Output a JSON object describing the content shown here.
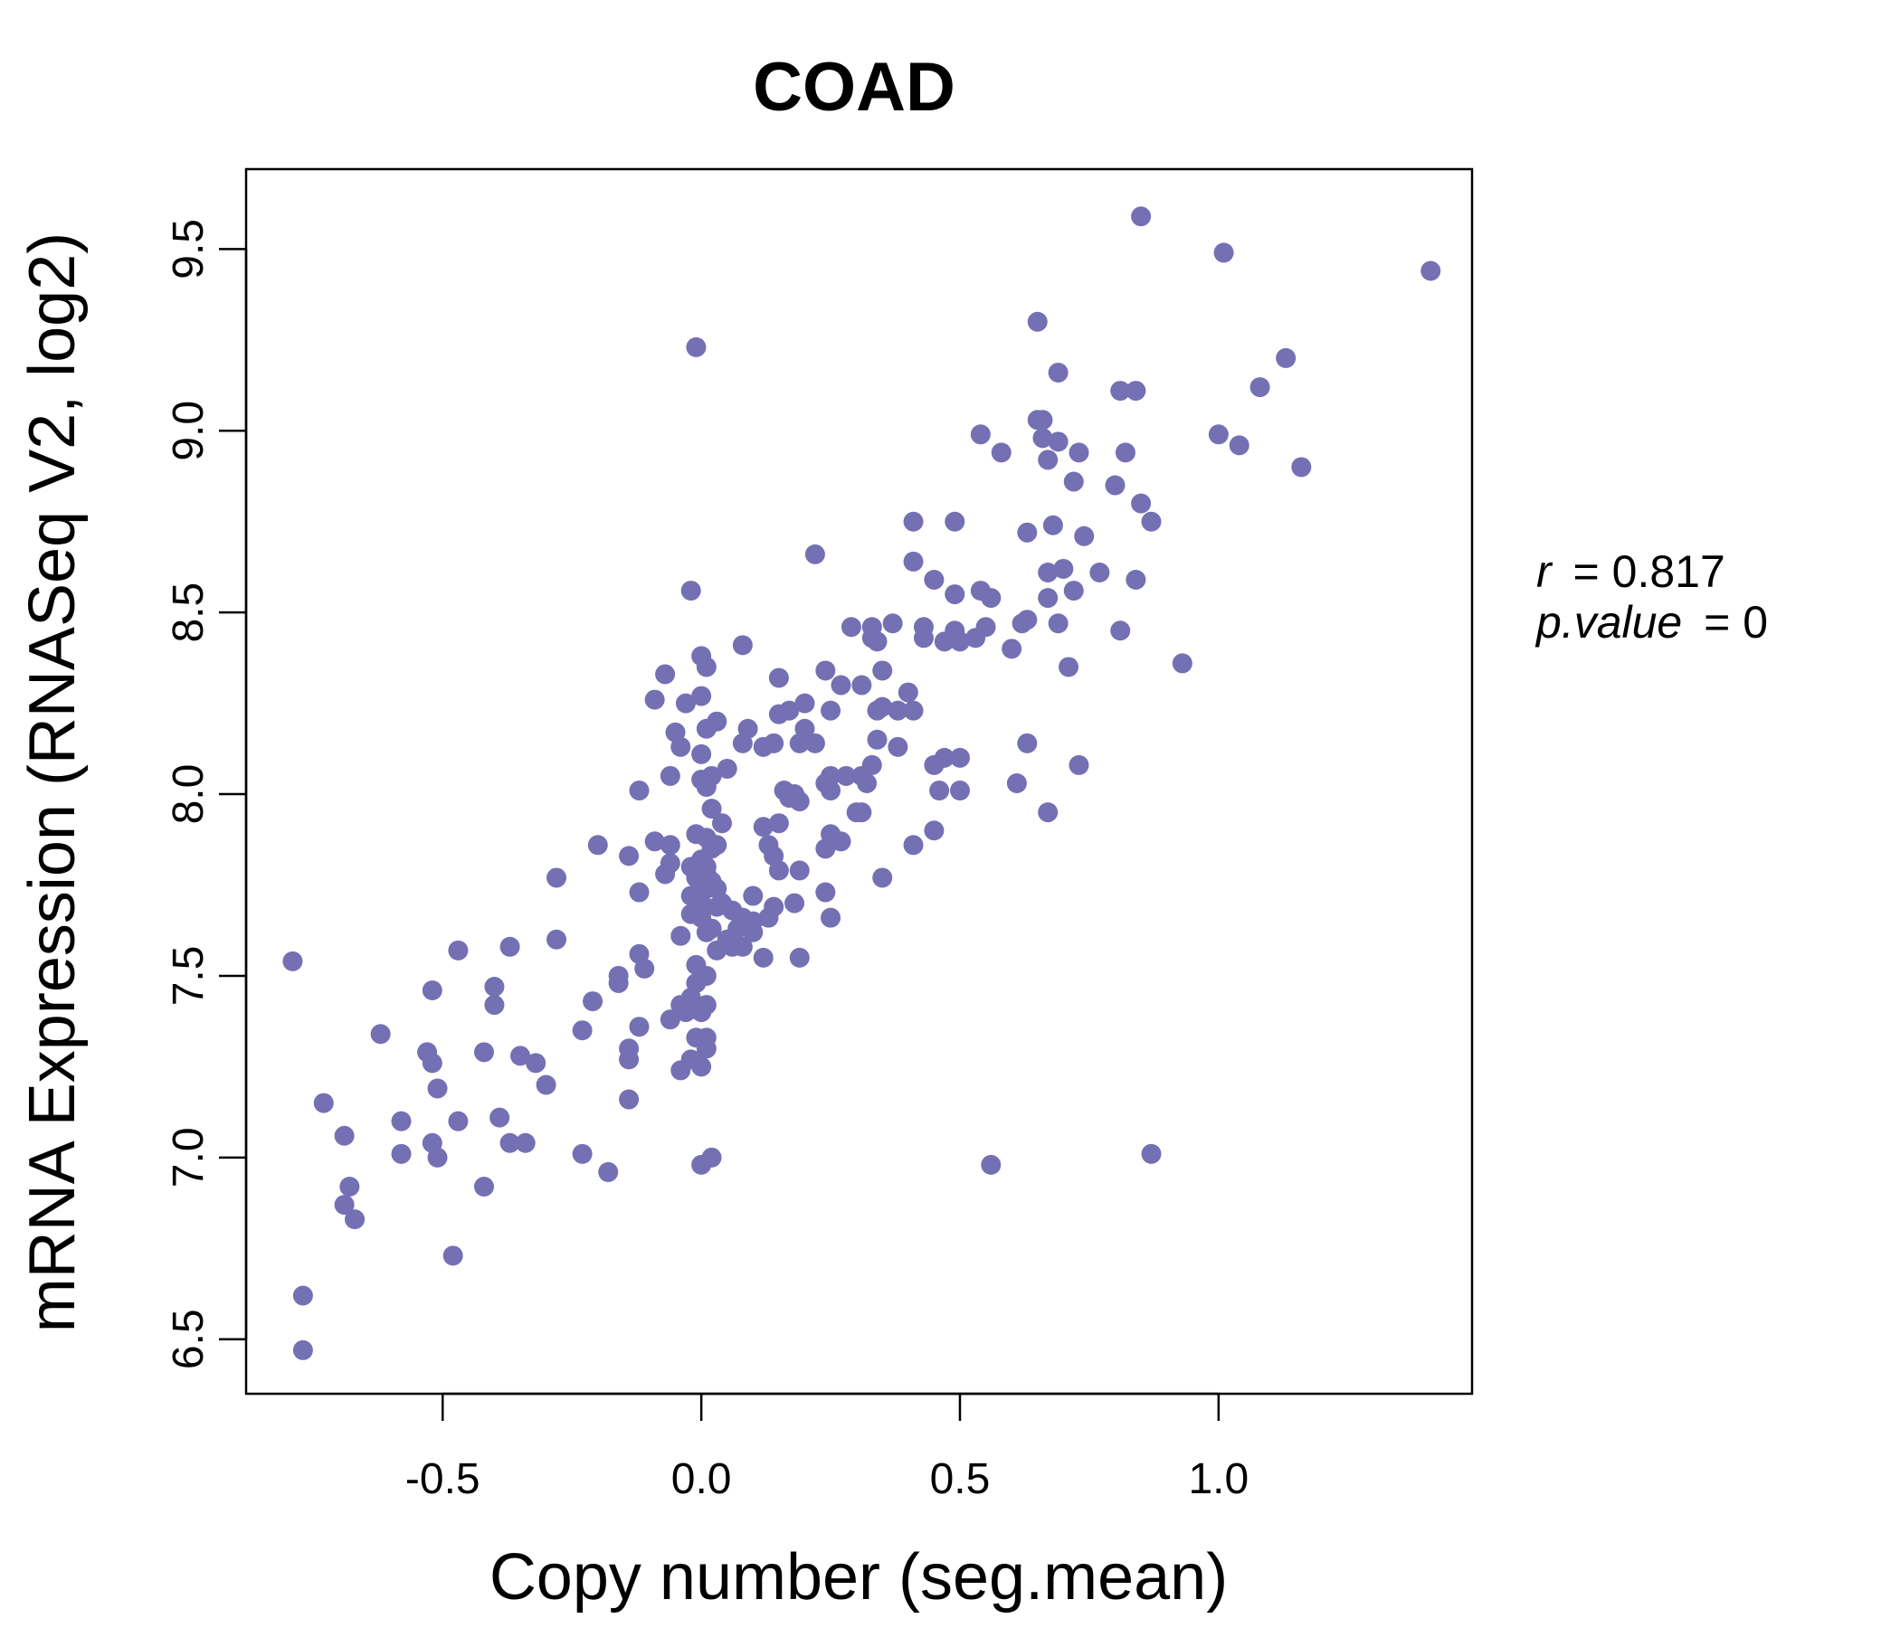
{
  "chart_data": {
    "type": "scatter",
    "title": "COAD",
    "xlabel": "Copy number (seg.mean)",
    "ylabel": "mRNA Expression (RNASeq V2, log2)",
    "xlim": [
      -0.88,
      1.49
    ],
    "ylim": [
      6.35,
      9.72
    ],
    "xticks": [
      -0.5,
      0.0,
      0.5,
      1.0
    ],
    "xtick_labels": [
      "-0.5",
      "0.0",
      "0.5",
      "1.0"
    ],
    "yticks": [
      6.5,
      7.0,
      7.5,
      8.0,
      8.5,
      9.0,
      9.5
    ],
    "ytick_labels": [
      "6.5",
      "7.0",
      "7.5",
      "8.0",
      "8.5",
      "9.0",
      "9.5"
    ],
    "grid": false,
    "colors": {
      "point": "#7570b3",
      "title": "#7570b3"
    },
    "stats": {
      "r_label": "r",
      "r_value": "0.817",
      "p_label": "p.value",
      "p_value": "0"
    },
    "points": [
      [
        0.85,
        9.59
      ],
      [
        1.01,
        9.49
      ],
      [
        1.41,
        9.44
      ],
      [
        0.65,
        9.3
      ],
      [
        -0.01,
        9.23
      ],
      [
        1.13,
        9.2
      ],
      [
        0.69,
        9.16
      ],
      [
        0.81,
        9.11
      ],
      [
        0.84,
        9.11
      ],
      [
        1.08,
        9.12
      ],
      [
        0.65,
        9.03
      ],
      [
        0.66,
        9.03
      ],
      [
        0.54,
        8.99
      ],
      [
        0.66,
        8.98
      ],
      [
        0.69,
        8.97
      ],
      [
        1.0,
        8.99
      ],
      [
        1.04,
        8.96
      ],
      [
        0.58,
        8.94
      ],
      [
        0.67,
        8.92
      ],
      [
        0.73,
        8.94
      ],
      [
        0.82,
        8.94
      ],
      [
        1.16,
        8.9
      ],
      [
        0.72,
        8.86
      ],
      [
        0.8,
        8.85
      ],
      [
        0.85,
        8.8
      ],
      [
        0.41,
        8.75
      ],
      [
        0.49,
        8.75
      ],
      [
        0.87,
        8.75
      ],
      [
        0.63,
        8.72
      ],
      [
        0.68,
        8.74
      ],
      [
        0.74,
        8.71
      ],
      [
        0.22,
        8.66
      ],
      [
        0.41,
        8.64
      ],
      [
        0.67,
        8.61
      ],
      [
        0.7,
        8.62
      ],
      [
        0.77,
        8.61
      ],
      [
        0.84,
        8.59
      ],
      [
        0.45,
        8.59
      ],
      [
        -0.02,
        8.56
      ],
      [
        0.49,
        8.55
      ],
      [
        0.54,
        8.56
      ],
      [
        0.56,
        8.54
      ],
      [
        0.67,
        8.54
      ],
      [
        0.72,
        8.56
      ],
      [
        0.37,
        8.47
      ],
      [
        0.29,
        8.46
      ],
      [
        0.33,
        8.46
      ],
      [
        0.43,
        8.46
      ],
      [
        0.49,
        8.45
      ],
      [
        0.55,
        8.46
      ],
      [
        0.62,
        8.47
      ],
      [
        0.63,
        8.48
      ],
      [
        0.69,
        8.47
      ],
      [
        0.33,
        8.43
      ],
      [
        0.34,
        8.42
      ],
      [
        0.43,
        8.43
      ],
      [
        0.47,
        8.42
      ],
      [
        0.5,
        8.42
      ],
      [
        0.53,
        8.43
      ],
      [
        0.81,
        8.45
      ],
      [
        0.6,
        8.4
      ],
      [
        0.08,
        8.41
      ],
      [
        0.0,
        8.38
      ],
      [
        0.01,
        8.35
      ],
      [
        -0.07,
        8.33
      ],
      [
        0.71,
        8.35
      ],
      [
        0.93,
        8.36
      ],
      [
        0.24,
        8.34
      ],
      [
        0.35,
        8.34
      ],
      [
        0.27,
        8.3
      ],
      [
        0.31,
        8.3
      ],
      [
        0.15,
        8.32
      ],
      [
        0.4,
        8.28
      ],
      [
        -0.09,
        8.26
      ],
      [
        -0.03,
        8.25
      ],
      [
        0.0,
        8.27
      ],
      [
        0.2,
        8.25
      ],
      [
        0.15,
        8.22
      ],
      [
        0.17,
        8.23
      ],
      [
        0.25,
        8.23
      ],
      [
        0.34,
        8.23
      ],
      [
        0.35,
        8.24
      ],
      [
        0.38,
        8.23
      ],
      [
        0.41,
        8.23
      ],
      [
        0.03,
        8.2
      ],
      [
        0.01,
        8.18
      ],
      [
        0.09,
        8.18
      ],
      [
        0.2,
        8.18
      ],
      [
        -0.05,
        8.17
      ],
      [
        -0.04,
        8.13
      ],
      [
        0.08,
        8.14
      ],
      [
        0.12,
        8.13
      ],
      [
        0.14,
        8.14
      ],
      [
        0.19,
        8.14
      ],
      [
        0.22,
        8.14
      ],
      [
        0.34,
        8.15
      ],
      [
        0.38,
        8.13
      ],
      [
        0.63,
        8.14
      ],
      [
        0.0,
        8.11
      ],
      [
        0.05,
        8.07
      ],
      [
        0.33,
        8.08
      ],
      [
        0.45,
        8.08
      ],
      [
        0.47,
        8.1
      ],
      [
        0.5,
        8.1
      ],
      [
        0.73,
        8.08
      ],
      [
        0.28,
        8.05
      ],
      [
        0.31,
        8.05
      ],
      [
        0.25,
        8.05
      ],
      [
        0.32,
        8.03
      ],
      [
        -0.06,
        8.05
      ],
      [
        0.0,
        8.04
      ],
      [
        0.01,
        8.02
      ],
      [
        0.02,
        8.05
      ],
      [
        0.16,
        8.01
      ],
      [
        0.17,
        7.99
      ],
      [
        0.18,
        8.0
      ],
      [
        0.19,
        7.98
      ],
      [
        0.24,
        8.03
      ],
      [
        0.25,
        8.01
      ],
      [
        -0.12,
        8.01
      ],
      [
        0.46,
        8.01
      ],
      [
        0.5,
        8.01
      ],
      [
        0.61,
        8.03
      ],
      [
        0.67,
        7.95
      ],
      [
        0.02,
        7.96
      ],
      [
        0.04,
        7.92
      ],
      [
        0.12,
        7.91
      ],
      [
        0.15,
        7.92
      ],
      [
        0.3,
        7.95
      ],
      [
        0.31,
        7.95
      ],
      [
        0.45,
        7.9
      ],
      [
        0.25,
        7.89
      ],
      [
        0.13,
        7.86
      ],
      [
        0.41,
        7.86
      ],
      [
        0.27,
        7.87
      ],
      [
        -0.2,
        7.86
      ],
      [
        -0.09,
        7.87
      ],
      [
        -0.06,
        7.86
      ],
      [
        -0.01,
        7.89
      ],
      [
        0.01,
        7.88
      ],
      [
        0.02,
        7.85
      ],
      [
        0.03,
        7.86
      ],
      [
        0.24,
        7.85
      ],
      [
        -0.14,
        7.83
      ],
      [
        -0.06,
        7.81
      ],
      [
        0.0,
        7.82
      ],
      [
        0.01,
        7.8
      ],
      [
        0.15,
        7.79
      ],
      [
        0.19,
        7.79
      ],
      [
        0.14,
        7.83
      ],
      [
        -0.07,
        7.78
      ],
      [
        -0.02,
        7.8
      ],
      [
        -0.01,
        7.77
      ],
      [
        0.01,
        7.78
      ],
      [
        0.35,
        7.77
      ],
      [
        -0.28,
        7.77
      ],
      [
        0.0,
        7.75
      ],
      [
        0.01,
        7.74
      ],
      [
        0.02,
        7.76
      ],
      [
        0.03,
        7.74
      ],
      [
        0.24,
        7.73
      ],
      [
        -0.12,
        7.73
      ],
      [
        0.1,
        7.72
      ],
      [
        -0.02,
        7.72
      ],
      [
        0.0,
        7.7
      ],
      [
        0.04,
        7.7
      ],
      [
        0.14,
        7.69
      ],
      [
        0.18,
        7.7
      ],
      [
        0.03,
        7.69
      ],
      [
        0.06,
        7.68
      ],
      [
        -0.02,
        7.67
      ],
      [
        0.0,
        7.66
      ],
      [
        0.08,
        7.66
      ],
      [
        0.1,
        7.65
      ],
      [
        0.13,
        7.66
      ],
      [
        0.25,
        7.66
      ],
      [
        0.02,
        7.63
      ],
      [
        0.07,
        7.63
      ],
      [
        0.01,
        7.62
      ],
      [
        0.1,
        7.62
      ],
      [
        0.05,
        7.6
      ],
      [
        -0.04,
        7.61
      ],
      [
        -0.28,
        7.6
      ],
      [
        0.06,
        7.58
      ],
      [
        0.08,
        7.58
      ],
      [
        -0.37,
        7.58
      ],
      [
        0.03,
        7.57
      ],
      [
        -0.47,
        7.57
      ],
      [
        -0.12,
        7.56
      ],
      [
        0.12,
        7.55
      ],
      [
        0.19,
        7.55
      ],
      [
        -0.79,
        7.54
      ],
      [
        -0.01,
        7.53
      ],
      [
        0.01,
        7.5
      ],
      [
        -0.01,
        7.48
      ],
      [
        -0.11,
        7.52
      ],
      [
        -0.16,
        7.5
      ],
      [
        -0.16,
        7.48
      ],
      [
        -0.4,
        7.47
      ],
      [
        -0.52,
        7.46
      ],
      [
        -0.02,
        7.44
      ],
      [
        0.01,
        7.42
      ],
      [
        0.0,
        7.4
      ],
      [
        -0.04,
        7.42
      ],
      [
        -0.03,
        7.4
      ],
      [
        -0.4,
        7.42
      ],
      [
        -0.21,
        7.43
      ],
      [
        -0.06,
        7.38
      ],
      [
        -0.12,
        7.36
      ],
      [
        -0.23,
        7.35
      ],
      [
        -0.62,
        7.34
      ],
      [
        -0.01,
        7.33
      ],
      [
        0.01,
        7.33
      ],
      [
        0.01,
        7.3
      ],
      [
        -0.14,
        7.3
      ],
      [
        -0.42,
        7.29
      ],
      [
        -0.53,
        7.29
      ],
      [
        -0.52,
        7.26
      ],
      [
        -0.35,
        7.28
      ],
      [
        -0.32,
        7.26
      ],
      [
        -0.14,
        7.27
      ],
      [
        0.0,
        7.25
      ],
      [
        -0.02,
        7.27
      ],
      [
        -0.04,
        7.24
      ],
      [
        -0.51,
        7.19
      ],
      [
        -0.3,
        7.2
      ],
      [
        -0.14,
        7.16
      ],
      [
        -0.73,
        7.15
      ],
      [
        -0.58,
        7.1
      ],
      [
        -0.47,
        7.1
      ],
      [
        -0.39,
        7.11
      ],
      [
        -0.69,
        7.06
      ],
      [
        -0.52,
        7.04
      ],
      [
        -0.37,
        7.04
      ],
      [
        -0.34,
        7.04
      ],
      [
        -0.58,
        7.01
      ],
      [
        -0.51,
        7.0
      ],
      [
        -0.23,
        7.01
      ],
      [
        0.02,
        7.0
      ],
      [
        0.0,
        6.98
      ],
      [
        0.56,
        6.98
      ],
      [
        0.87,
        7.01
      ],
      [
        -0.18,
        6.96
      ],
      [
        -0.68,
        6.92
      ],
      [
        -0.42,
        6.92
      ],
      [
        -0.69,
        6.87
      ],
      [
        -0.67,
        6.83
      ],
      [
        -0.48,
        6.73
      ],
      [
        -0.77,
        6.62
      ],
      [
        -0.77,
        6.47
      ]
    ]
  }
}
